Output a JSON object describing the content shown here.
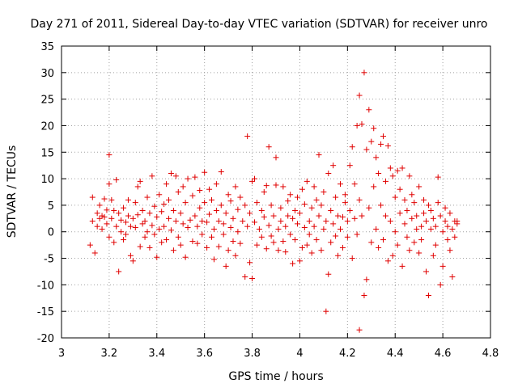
{
  "chart_data": {
    "type": "scatter",
    "title": "Day 271 of 2011, Sidereal Day-to-day VTEC variation (SDTVAR) for receiver unro",
    "xlabel": "GPS time / hours",
    "ylabel": "SDTVAR / TECUs",
    "xlim": [
      3,
      4.8
    ],
    "ylim": [
      -20,
      35
    ],
    "xticks": [
      3,
      3.2,
      3.4,
      3.6,
      3.8,
      4,
      4.2,
      4.4,
      4.6,
      4.8
    ],
    "xtick_labels": [
      "3",
      "3.2",
      "3.4",
      "3.6",
      "3.8",
      "4",
      "4.2",
      "4.4",
      "4.6",
      "4.8"
    ],
    "yticks": [
      -20,
      -15,
      -10,
      -5,
      0,
      5,
      10,
      15,
      20,
      25,
      30,
      35
    ],
    "ytick_labels": [
      "-20",
      "-15",
      "-10",
      "-5",
      "0",
      "5",
      "10",
      "15",
      "20",
      "25",
      "30",
      "35"
    ],
    "grid": true,
    "marker": "+",
    "color": "#e00000",
    "series": [
      {
        "name": "SDTVAR",
        "points": [
          [
            3.12,
            -2.5
          ],
          [
            3.13,
            2.0
          ],
          [
            3.13,
            6.5
          ],
          [
            3.14,
            -4.0
          ],
          [
            3.15,
            1.0
          ],
          [
            3.15,
            3.5
          ],
          [
            3.16,
            2.5
          ],
          [
            3.16,
            5.0
          ],
          [
            3.17,
            0.5
          ],
          [
            3.17,
            3.0
          ],
          [
            3.18,
            6.2
          ],
          [
            3.18,
            2.8
          ],
          [
            3.19,
            4.1
          ],
          [
            3.19,
            1.5
          ],
          [
            3.2,
            14.5
          ],
          [
            3.2,
            9.0
          ],
          [
            3.2,
            -1.0
          ],
          [
            3.21,
            6.0
          ],
          [
            3.21,
            2.5
          ],
          [
            3.22,
            -2.0
          ],
          [
            3.22,
            4.0
          ],
          [
            3.23,
            1.0
          ],
          [
            3.23,
            9.8
          ],
          [
            3.24,
            -7.5
          ],
          [
            3.24,
            3.5
          ],
          [
            3.25,
            0.0
          ],
          [
            3.25,
            2.2
          ],
          [
            3.26,
            -1.5
          ],
          [
            3.26,
            4.5
          ],
          [
            3.27,
            1.8
          ],
          [
            3.27,
            -0.5
          ],
          [
            3.28,
            3.0
          ],
          [
            3.28,
            6.0
          ],
          [
            3.29,
            -4.5
          ],
          [
            3.29,
            1.0
          ],
          [
            3.3,
            2.5
          ],
          [
            3.3,
            -5.5
          ],
          [
            3.31,
            5.5
          ],
          [
            3.31,
            0.8
          ],
          [
            3.32,
            8.5
          ],
          [
            3.32,
            3.2
          ],
          [
            3.33,
            9.5
          ],
          [
            3.33,
            -2.8
          ],
          [
            3.34,
            1.5
          ],
          [
            3.34,
            4.0
          ],
          [
            3.35,
            -1.0
          ],
          [
            3.35,
            2.0
          ],
          [
            3.36,
            6.5
          ],
          [
            3.36,
            0.0
          ],
          [
            3.37,
            3.5
          ],
          [
            3.37,
            -3.0
          ],
          [
            3.38,
            10.5
          ],
          [
            3.38,
            1.2
          ],
          [
            3.39,
            4.8
          ],
          [
            3.39,
            -0.5
          ],
          [
            3.4,
            2.8
          ],
          [
            3.4,
            -4.8
          ],
          [
            3.41,
            7.0
          ],
          [
            3.41,
            0.5
          ],
          [
            3.42,
            3.8
          ],
          [
            3.42,
            -2.0
          ],
          [
            3.43,
            5.2
          ],
          [
            3.43,
            1.0
          ],
          [
            3.44,
            9.0
          ],
          [
            3.44,
            -1.5
          ],
          [
            3.45,
            2.5
          ],
          [
            3.45,
            6.0
          ],
          [
            3.46,
            11.0
          ],
          [
            3.46,
            0.3
          ],
          [
            3.47,
            4.0
          ],
          [
            3.47,
            -3.5
          ],
          [
            3.48,
            10.5
          ],
          [
            3.48,
            2.0
          ],
          [
            3.49,
            7.5
          ],
          [
            3.49,
            -1.0
          ],
          [
            3.5,
            3.5
          ],
          [
            3.5,
            -2.5
          ],
          [
            3.51,
            8.5
          ],
          [
            3.51,
            1.5
          ],
          [
            3.52,
            5.5
          ],
          [
            3.52,
            -4.8
          ],
          [
            3.53,
            10.0
          ],
          [
            3.53,
            0.8
          ],
          [
            3.54,
            2.2
          ],
          [
            3.55,
            6.8
          ],
          [
            3.55,
            -1.8
          ],
          [
            3.56,
            3.0
          ],
          [
            3.56,
            10.3
          ],
          [
            3.57,
            1.0
          ],
          [
            3.57,
            -2.2
          ],
          [
            3.58,
            4.5
          ],
          [
            3.58,
            7.8
          ],
          [
            3.59,
            -0.5
          ],
          [
            3.59,
            2.0
          ],
          [
            3.6,
            11.2
          ],
          [
            3.6,
            5.5
          ],
          [
            3.61,
            -3.0
          ],
          [
            3.61,
            1.8
          ],
          [
            3.62,
            8.0
          ],
          [
            3.62,
            3.3
          ],
          [
            3.63,
            -1.0
          ],
          [
            3.63,
            6.0
          ],
          [
            3.64,
            0.5
          ],
          [
            3.64,
            -5.2
          ],
          [
            3.65,
            4.0
          ],
          [
            3.65,
            9.0
          ],
          [
            3.66,
            2.0
          ],
          [
            3.66,
            -2.8
          ],
          [
            3.67,
            11.3
          ],
          [
            3.67,
            5.0
          ],
          [
            3.68,
            -0.5
          ],
          [
            3.68,
            1.5
          ],
          [
            3.69,
            -6.5
          ],
          [
            3.69,
            3.5
          ],
          [
            3.7,
            7.0
          ],
          [
            3.7,
            -3.5
          ],
          [
            3.71,
            0.8
          ],
          [
            3.71,
            5.8
          ],
          [
            3.72,
            -1.8
          ],
          [
            3.72,
            2.5
          ],
          [
            3.73,
            8.5
          ],
          [
            3.73,
            -4.5
          ],
          [
            3.74,
            4.2
          ],
          [
            3.74,
            0.0
          ],
          [
            3.75,
            6.5
          ],
          [
            3.75,
            -2.2
          ],
          [
            3.76,
            2.0
          ],
          [
            3.77,
            -8.5
          ],
          [
            3.77,
            5.0
          ],
          [
            3.78,
            18.0
          ],
          [
            3.78,
            1.0
          ],
          [
            3.79,
            -5.8
          ],
          [
            3.79,
            3.5
          ],
          [
            3.8,
            9.5
          ],
          [
            3.8,
            -8.8
          ],
          [
            3.81,
            1.8
          ],
          [
            3.81,
            10.0
          ],
          [
            3.82,
            -2.5
          ],
          [
            3.82,
            5.5
          ],
          [
            3.83,
            0.5
          ],
          [
            3.84,
            4.0
          ],
          [
            3.84,
            -1.0
          ],
          [
            3.85,
            7.5
          ],
          [
            3.85,
            2.8
          ],
          [
            3.86,
            -3.2
          ],
          [
            3.86,
            8.7
          ],
          [
            3.87,
            1.2
          ],
          [
            3.87,
            16.0
          ],
          [
            3.88,
            -0.8
          ],
          [
            3.88,
            5.0
          ],
          [
            3.89,
            3.0
          ],
          [
            3.89,
            -2.0
          ],
          [
            3.9,
            8.8
          ],
          [
            3.9,
            14.0
          ],
          [
            3.91,
            0.5
          ],
          [
            3.91,
            -3.5
          ],
          [
            3.92,
            4.5
          ],
          [
            3.92,
            2.0
          ],
          [
            3.93,
            -1.8
          ],
          [
            3.93,
            8.5
          ],
          [
            3.94,
            1.0
          ],
          [
            3.94,
            -3.8
          ],
          [
            3.95,
            5.8
          ],
          [
            3.95,
            3.0
          ],
          [
            3.96,
            -0.5
          ],
          [
            3.96,
            7.0
          ],
          [
            3.97,
            2.5
          ],
          [
            3.97,
            -6.0
          ],
          [
            3.98,
            4.0
          ],
          [
            3.98,
            -1.5
          ],
          [
            3.99,
            6.5
          ],
          [
            3.99,
            1.5
          ],
          [
            4.0,
            -5.5
          ],
          [
            4.0,
            3.5
          ],
          [
            4.01,
            8.0
          ],
          [
            4.01,
            -3.0
          ],
          [
            4.02,
            0.8
          ],
          [
            4.02,
            5.2
          ],
          [
            4.03,
            -2.5
          ],
          [
            4.03,
            9.5
          ],
          [
            4.04,
            2.0
          ],
          [
            4.04,
            -0.5
          ],
          [
            4.05,
            4.5
          ],
          [
            4.05,
            -4.0
          ],
          [
            4.06,
            8.5
          ],
          [
            4.06,
            1.0
          ],
          [
            4.07,
            -1.5
          ],
          [
            4.07,
            6.0
          ],
          [
            4.08,
            3.0
          ],
          [
            4.08,
            14.5
          ],
          [
            4.09,
            -3.5
          ],
          [
            4.09,
            5.0
          ],
          [
            4.1,
            0.5
          ],
          [
            4.1,
            7.5
          ],
          [
            4.11,
            -15.0
          ],
          [
            4.11,
            2.0
          ],
          [
            4.12,
            -8.0
          ],
          [
            4.12,
            11.0
          ],
          [
            4.13,
            4.0
          ],
          [
            4.13,
            -2.0
          ],
          [
            4.14,
            12.5
          ],
          [
            4.14,
            1.5
          ],
          [
            4.15,
            -0.8
          ],
          [
            4.15,
            6.5
          ],
          [
            4.16,
            3.0
          ],
          [
            4.16,
            -4.5
          ],
          [
            4.17,
            9.0
          ],
          [
            4.17,
            0.5
          ],
          [
            4.18,
            2.8
          ],
          [
            4.18,
            -3.0
          ],
          [
            4.19,
            5.5
          ],
          [
            4.19,
            7.0
          ],
          [
            4.2,
            -1.0
          ],
          [
            4.2,
            2.0
          ],
          [
            4.21,
            12.5
          ],
          [
            4.21,
            4.0
          ],
          [
            4.22,
            -5.0
          ],
          [
            4.22,
            16.0
          ],
          [
            4.23,
            2.5
          ],
          [
            4.23,
            9.0
          ],
          [
            4.24,
            20.0
          ],
          [
            4.24,
            -0.5
          ],
          [
            4.25,
            25.7
          ],
          [
            4.25,
            6.0
          ],
          [
            4.25,
            -18.5
          ],
          [
            4.26,
            20.3
          ],
          [
            4.26,
            3.0
          ],
          [
            4.27,
            30.0
          ],
          [
            4.27,
            -12.0
          ],
          [
            4.28,
            15.5
          ],
          [
            4.28,
            -9.0
          ],
          [
            4.29,
            23.0
          ],
          [
            4.29,
            4.5
          ],
          [
            4.3,
            17.0
          ],
          [
            4.3,
            -2.0
          ],
          [
            4.31,
            19.5
          ],
          [
            4.31,
            8.5
          ],
          [
            4.32,
            14.0
          ],
          [
            4.32,
            0.5
          ],
          [
            4.33,
            11.0
          ],
          [
            4.33,
            -3.0
          ],
          [
            4.34,
            16.5
          ],
          [
            4.34,
            5.0
          ],
          [
            4.35,
            18.0
          ],
          [
            4.35,
            -1.5
          ],
          [
            4.36,
            9.5
          ],
          [
            4.36,
            3.0
          ],
          [
            4.37,
            16.2
          ],
          [
            4.37,
            -5.5
          ],
          [
            4.38,
            12.0
          ],
          [
            4.38,
            2.0
          ],
          [
            4.39,
            10.5
          ],
          [
            4.39,
            -4.5
          ],
          [
            4.4,
            6.5
          ],
          [
            4.4,
            0.0
          ],
          [
            4.41,
            11.5
          ],
          [
            4.41,
            -2.5
          ],
          [
            4.42,
            8.0
          ],
          [
            4.42,
            3.5
          ],
          [
            4.43,
            -6.5
          ],
          [
            4.43,
            12.0
          ],
          [
            4.44,
            1.5
          ],
          [
            4.44,
            6.0
          ],
          [
            4.45,
            -1.0
          ],
          [
            4.45,
            4.0
          ],
          [
            4.46,
            10.5
          ],
          [
            4.46,
            -3.5
          ],
          [
            4.47,
            2.5
          ],
          [
            4.47,
            7.0
          ],
          [
            4.48,
            -2.0
          ],
          [
            4.48,
            5.5
          ],
          [
            4.49,
            0.5
          ],
          [
            4.49,
            3.0
          ],
          [
            4.5,
            -4.0
          ],
          [
            4.5,
            8.5
          ],
          [
            4.51,
            1.0
          ],
          [
            4.51,
            -1.5
          ],
          [
            4.52,
            6.0
          ],
          [
            4.52,
            3.5
          ],
          [
            4.53,
            -7.5
          ],
          [
            4.53,
            2.0
          ],
          [
            4.54,
            5.0
          ],
          [
            4.54,
            -12.0
          ],
          [
            4.55,
            0.5
          ],
          [
            4.55,
            4.0
          ],
          [
            4.56,
            -4.5
          ],
          [
            4.56,
            2.5
          ],
          [
            4.57,
            1.0
          ],
          [
            4.57,
            -2.5
          ],
          [
            4.58,
            10.3
          ],
          [
            4.58,
            5.5
          ],
          [
            4.59,
            -10.0
          ],
          [
            4.59,
            3.0
          ],
          [
            4.6,
            0.0
          ],
          [
            4.6,
            -6.5
          ],
          [
            4.61,
            2.0
          ],
          [
            4.61,
            4.5
          ],
          [
            4.62,
            -1.5
          ],
          [
            4.62,
            1.0
          ],
          [
            4.63,
            3.5
          ],
          [
            4.63,
            -3.5
          ],
          [
            4.64,
            0.5
          ],
          [
            4.64,
            -8.5
          ],
          [
            4.65,
            2.0
          ],
          [
            4.65,
            -1.0
          ],
          [
            4.66,
            1.5
          ],
          [
            4.66,
            2.0
          ]
        ]
      }
    ]
  }
}
